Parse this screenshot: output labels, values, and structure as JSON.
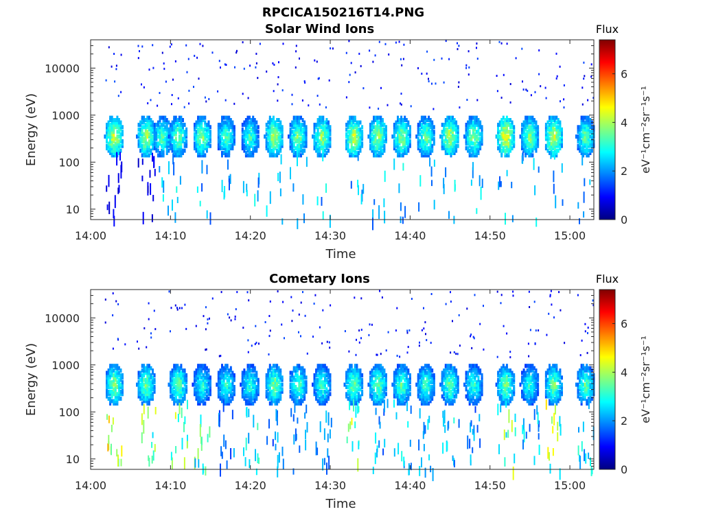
{
  "figure_title": "RPCICA150216T14.PNG",
  "chart_data": [
    {
      "type": "heatmap",
      "title": "Solar Wind Ions",
      "xlabel": "Time",
      "ylabel": "Energy (eV)",
      "x_range": [
        "14:00",
        "15:03"
      ],
      "x_tick_labels": [
        "14:00",
        "14:10",
        "14:20",
        "14:30",
        "14:40",
        "14:50",
        "15:00"
      ],
      "y_scale": "log",
      "y_range": [
        6,
        40000
      ],
      "y_tick_labels": [
        "10",
        "100",
        "1000",
        "10000"
      ],
      "colorbar": {
        "title": "Flux",
        "label": "eV⁻¹cm⁻²sr⁻¹s⁻¹",
        "range": [
          0,
          7.4
        ],
        "tick_labels": [
          "0",
          "2",
          "4",
          "6"
        ],
        "colormap": "jet"
      },
      "peak_energy_eV": 350,
      "bursts": [
        {
          "t": "14:03",
          "amp": 4.5,
          "low": 1
        },
        {
          "t": "14:07",
          "amp": 4.2,
          "low": 1
        },
        {
          "t": "14:09",
          "amp": 3.6
        },
        {
          "t": "14:11",
          "amp": 3.8
        },
        {
          "t": "14:14",
          "amp": 3.9
        },
        {
          "t": "14:17",
          "amp": 3.5
        },
        {
          "t": "14:20",
          "amp": 3.4
        },
        {
          "t": "14:23",
          "amp": 4.2
        },
        {
          "t": "14:26",
          "amp": 3.8
        },
        {
          "t": "14:29",
          "amp": 4.1
        },
        {
          "t": "14:33",
          "amp": 4.4
        },
        {
          "t": "14:36",
          "amp": 4.2
        },
        {
          "t": "14:39",
          "amp": 4.0
        },
        {
          "t": "14:42",
          "amp": 3.8
        },
        {
          "t": "14:45",
          "amp": 4.3
        },
        {
          "t": "14:48",
          "amp": 3.9
        },
        {
          "t": "14:52",
          "amp": 4.8
        },
        {
          "t": "14:55",
          "amp": 3.9
        },
        {
          "t": "14:58",
          "amp": 4.5
        },
        {
          "t": "15:02",
          "amp": 3.7
        }
      ]
    },
    {
      "type": "heatmap",
      "title": "Cometary Ions",
      "xlabel": "Time",
      "ylabel": "Energy (eV)",
      "x_range": [
        "14:00",
        "15:03"
      ],
      "x_tick_labels": [
        "14:00",
        "14:10",
        "14:20",
        "14:30",
        "14:40",
        "14:50",
        "15:00"
      ],
      "y_scale": "log",
      "y_range": [
        6,
        40000
      ],
      "y_tick_labels": [
        "10",
        "100",
        "1000",
        "10000"
      ],
      "colorbar": {
        "title": "Flux",
        "label": "eV⁻¹cm⁻²sr⁻¹s⁻¹",
        "range": [
          0,
          7.4
        ],
        "tick_labels": [
          "0",
          "2",
          "4",
          "6"
        ],
        "colormap": "jet"
      },
      "peak_energy_eV": 380,
      "bursts": [
        {
          "t": "14:03",
          "amp": 4.0,
          "low": 5.5
        },
        {
          "t": "14:07",
          "amp": 3.8,
          "low": 4.8
        },
        {
          "t": "14:11",
          "amp": 3.7,
          "low": 4.5
        },
        {
          "t": "14:14",
          "amp": 3.2,
          "low": 4.0
        },
        {
          "t": "14:17",
          "amp": 3.3,
          "low": 2.5
        },
        {
          "t": "14:20",
          "amp": 3.3,
          "low": 3.5
        },
        {
          "t": "14:23",
          "amp": 3.8,
          "low": 2.5
        },
        {
          "t": "14:26",
          "amp": 3.5,
          "low": 2.5
        },
        {
          "t": "14:29",
          "amp": 3.4,
          "low": 2.8
        },
        {
          "t": "14:33",
          "amp": 3.8,
          "low": 5.0
        },
        {
          "t": "14:36",
          "amp": 3.8,
          "low": 2.8
        },
        {
          "t": "14:39",
          "amp": 3.6,
          "low": 3.0
        },
        {
          "t": "14:42",
          "amp": 3.5,
          "low": 2.8
        },
        {
          "t": "14:45",
          "amp": 3.7,
          "low": 3.2
        },
        {
          "t": "14:48",
          "amp": 3.3,
          "low": 2.5
        },
        {
          "t": "14:52",
          "amp": 3.8,
          "low": 4.5
        },
        {
          "t": "14:55",
          "amp": 3.2,
          "low": 3.0
        },
        {
          "t": "14:58",
          "amp": 3.8,
          "low": 5.0
        },
        {
          "t": "15:02",
          "amp": 3.6,
          "low": 3.2
        }
      ]
    }
  ]
}
